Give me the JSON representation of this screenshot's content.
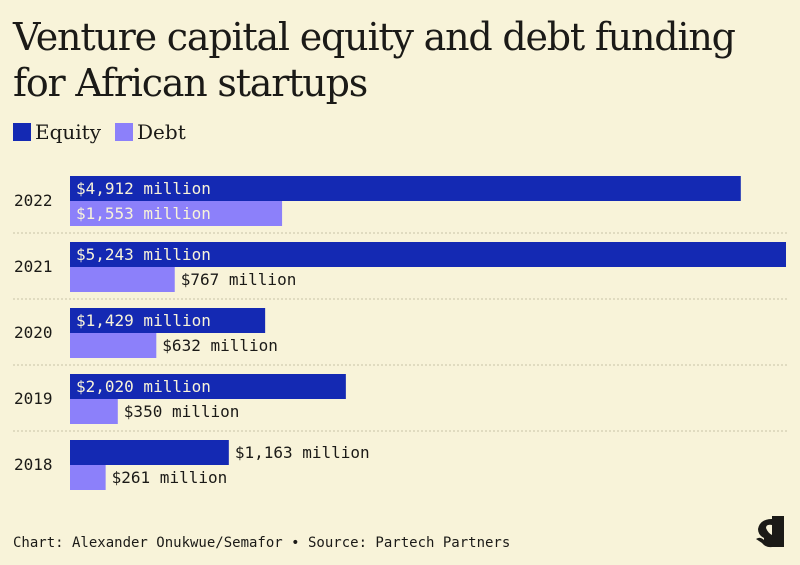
{
  "title": "Venture capital equity and debt funding for African startups",
  "footer": "Chart: Alexander Onukwue/Semafor • Source: Partech Partners",
  "logo": "S",
  "colors": {
    "equity": "#1429b3",
    "debt": "#8c80fa",
    "background": "#f8f3d9"
  },
  "chart_data": {
    "type": "bar",
    "orientation": "horizontal",
    "title": "Venture capital equity and debt funding for African startups",
    "categories": [
      "2022",
      "2021",
      "2020",
      "2019",
      "2018"
    ],
    "series": [
      {
        "name": "Equity",
        "values": [
          4912,
          5243,
          1429,
          2020,
          1163
        ],
        "labels": [
          "$4,912 million",
          "$5,243 million",
          "$1,429 million",
          "$2,020 million",
          "$1,163 million"
        ]
      },
      {
        "name": "Debt",
        "values": [
          1553,
          767,
          632,
          350,
          261
        ],
        "labels": [
          "$1,553 million",
          "$767 million",
          "$632 million",
          "$350 million",
          "$261 million"
        ]
      }
    ],
    "xlim": [
      0,
      5243
    ],
    "unit": "million USD",
    "legend": "top-left",
    "grid": false
  }
}
